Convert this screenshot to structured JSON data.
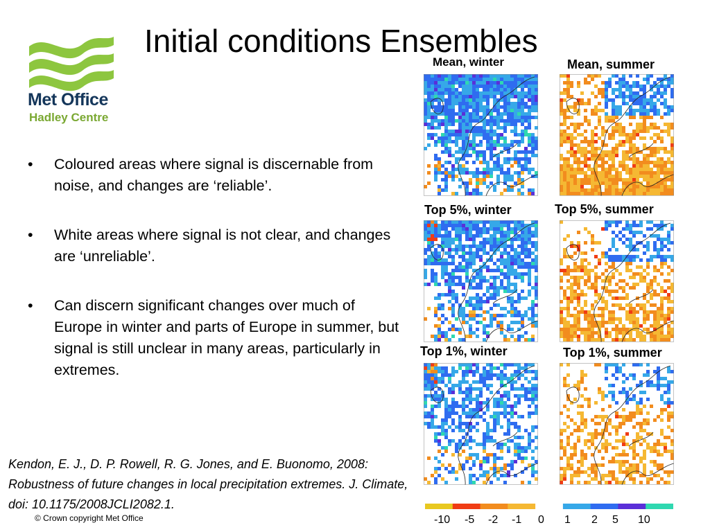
{
  "title": "Initial conditions Ensembles",
  "logo": {
    "line1": "Met Office",
    "line2": "Hadley Centre",
    "color_dark": "#14365a",
    "color_green": "#8dc63f"
  },
  "bullets": [
    "Coloured areas where signal is discernable from noise, and changes are ‘reliable’.",
    "White areas where signal is not clear, and changes are ‘unreliable’.",
    "Can discern significant changes over much of Europe in winter and parts of Europe in summer, but signal is still unclear in many areas, particularly in extremes."
  ],
  "bullet_symbol": "•",
  "citation": "Kendon, E. J., D. P. Rowell, R. G. Jones, and E. Buonomo, 2008: Robustness of future changes in local precipitation extremes. J. Climate, doi: 10.1175/2008JCLI2082.1.",
  "copyright": "© Crown copyright   Met Office",
  "panels": [
    {
      "label": "Mean, winter",
      "season": "winter",
      "strength": 0.95
    },
    {
      "label": "Mean, summer",
      "season": "summer",
      "strength": 0.95
    },
    {
      "label": "Top 5%, winter",
      "season": "winter",
      "strength": 0.8
    },
    {
      "label": "Top 5%, summer",
      "season": "summer",
      "strength": 0.7
    },
    {
      "label": "Top 1%, winter",
      "season": "winter",
      "strength": 0.65
    },
    {
      "label": "Top 1%, summer",
      "season": "summer",
      "strength": 0.55
    }
  ],
  "colorbar": {
    "ticks": [
      "-10",
      "-5",
      "-2",
      "-1",
      "0",
      "1",
      "2",
      "5",
      "10"
    ],
    "colors": [
      "#e8c820",
      "#f03c14",
      "#f28c1e",
      "#f5b833",
      "#ffffff",
      "#36a8e8",
      "#2f6cf0",
      "#5a2fd8",
      "#2fd8b0"
    ]
  }
}
